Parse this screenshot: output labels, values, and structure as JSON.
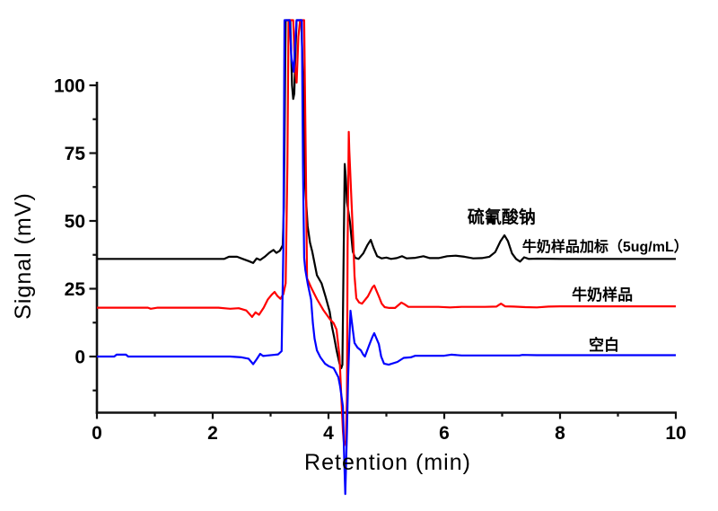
{
  "figure": {
    "kind": "HPLC chromatogram figure",
    "background": "#ffffff",
    "axis_color": "#111111"
  },
  "chart_data": {
    "type": "line",
    "title": "",
    "xlabel": "Retention (min)",
    "ylabel": "Signal (mV)",
    "xlim": [
      0,
      10
    ],
    "ylim": [
      -20,
      100
    ],
    "x_ticks_major": [
      0,
      2,
      4,
      6,
      8,
      10
    ],
    "x_ticks_minor": [
      1,
      3,
      5,
      7,
      9
    ],
    "y_ticks_major": [
      0,
      25,
      50,
      75,
      100
    ],
    "y_ticks_minor": [
      -12.5,
      12.5,
      37.5,
      62.5,
      87.5
    ],
    "grid": false,
    "legend_position": "inline-annotations",
    "clip_level_mV": 124,
    "series": [
      {
        "id": "spiked-milk-sample",
        "name": "牛奶样品加标（5ug/mL）",
        "color": "#000000",
        "baseline_mV": 36,
        "main_peak": {
          "t_min": 7.04,
          "mV": 44.7,
          "label": "硫氰酸钠"
        },
        "points": [
          [
            0,
            36
          ],
          [
            1,
            36
          ],
          [
            2,
            36
          ],
          [
            2.2,
            36
          ],
          [
            2.28,
            36.8
          ],
          [
            2.42,
            36.8
          ],
          [
            2.52,
            36
          ],
          [
            2.62,
            35.2
          ],
          [
            2.7,
            34.5
          ],
          [
            2.76,
            36.2
          ],
          [
            2.82,
            35.6
          ],
          [
            2.9,
            36.8
          ],
          [
            2.98,
            38.3
          ],
          [
            3.05,
            39.3
          ],
          [
            3.1,
            38.2
          ],
          [
            3.16,
            39
          ],
          [
            3.21,
            41
          ],
          [
            3.23,
            55
          ],
          [
            3.26,
            124
          ],
          [
            3.34,
            124
          ],
          [
            3.37,
            100
          ],
          [
            3.39,
            95
          ],
          [
            3.41,
            97
          ],
          [
            3.43,
            112
          ],
          [
            3.45,
            124
          ],
          [
            3.53,
            124
          ],
          [
            3.57,
            95
          ],
          [
            3.6,
            62
          ],
          [
            3.64,
            48
          ],
          [
            3.68,
            42
          ],
          [
            3.72,
            38.7
          ],
          [
            3.8,
            30
          ],
          [
            3.88,
            27
          ],
          [
            3.95,
            22
          ],
          [
            4.02,
            16.6
          ],
          [
            4.06,
            11
          ],
          [
            4.1,
            7
          ],
          [
            4.14,
            2.3
          ],
          [
            4.19,
            -2.6
          ],
          [
            4.22,
            -4.3
          ],
          [
            4.24,
            -3
          ],
          [
            4.26,
            35
          ],
          [
            4.28,
            71
          ],
          [
            4.3,
            66
          ],
          [
            4.32,
            57
          ],
          [
            4.37,
            49.7
          ],
          [
            4.42,
            38.7
          ],
          [
            4.46,
            36.4
          ],
          [
            4.52,
            36
          ],
          [
            4.6,
            38
          ],
          [
            4.67,
            41
          ],
          [
            4.73,
            43
          ],
          [
            4.78,
            40
          ],
          [
            4.84,
            37
          ],
          [
            4.92,
            36.2
          ],
          [
            5,
            36.5
          ],
          [
            5.08,
            36
          ],
          [
            5.18,
            36.3
          ],
          [
            5.27,
            37
          ],
          [
            5.35,
            36.2
          ],
          [
            5.5,
            36.4
          ],
          [
            5.64,
            37
          ],
          [
            5.75,
            36.3
          ],
          [
            5.9,
            36.3
          ],
          [
            6.05,
            37
          ],
          [
            6.2,
            37.2
          ],
          [
            6.35,
            36.8
          ],
          [
            6.5,
            36.2
          ],
          [
            6.65,
            36.3
          ],
          [
            6.78,
            36.8
          ],
          [
            6.88,
            38.5
          ],
          [
            6.97,
            42.5
          ],
          [
            7.04,
            44.7
          ],
          [
            7.1,
            42.5
          ],
          [
            7.17,
            38
          ],
          [
            7.24,
            36
          ],
          [
            7.31,
            35
          ],
          [
            7.38,
            36.6
          ],
          [
            7.46,
            36
          ],
          [
            7.6,
            36.1
          ],
          [
            8,
            36
          ],
          [
            8.5,
            36
          ],
          [
            9,
            36
          ],
          [
            9.5,
            36
          ],
          [
            10,
            36
          ]
        ]
      },
      {
        "id": "milk-sample",
        "name": "牛奶样品",
        "color": "#ff0000",
        "baseline_mV": 18,
        "points": [
          [
            0,
            18
          ],
          [
            0.88,
            18
          ],
          [
            0.93,
            17.6
          ],
          [
            1.05,
            18
          ],
          [
            1.5,
            18
          ],
          [
            2.1,
            18
          ],
          [
            2.3,
            17.6
          ],
          [
            2.45,
            17.8
          ],
          [
            2.58,
            17
          ],
          [
            2.68,
            14.6
          ],
          [
            2.74,
            16.3
          ],
          [
            2.8,
            15.4
          ],
          [
            2.88,
            18
          ],
          [
            2.95,
            21
          ],
          [
            3.02,
            22.8
          ],
          [
            3.07,
            23.8
          ],
          [
            3.12,
            22.3
          ],
          [
            3.17,
            21.3
          ],
          [
            3.22,
            23
          ],
          [
            3.26,
            27
          ],
          [
            3.29,
            70
          ],
          [
            3.31,
            124
          ],
          [
            3.39,
            124
          ],
          [
            3.42,
            107
          ],
          [
            3.45,
            101
          ],
          [
            3.48,
            118
          ],
          [
            3.51,
            124
          ],
          [
            3.58,
            124
          ],
          [
            3.61,
            70
          ],
          [
            3.63,
            28.8
          ],
          [
            3.7,
            25.5
          ],
          [
            3.8,
            21.2
          ],
          [
            3.91,
            17.2
          ],
          [
            4.02,
            13.9
          ],
          [
            4.09,
            12.3
          ],
          [
            4.14,
            9.9
          ],
          [
            4.19,
            0
          ],
          [
            4.22,
            -14.2
          ],
          [
            4.25,
            -27.5
          ],
          [
            4.27,
            -33
          ],
          [
            4.3,
            -31
          ],
          [
            4.32,
            -15
          ],
          [
            4.33,
            40
          ],
          [
            4.35,
            82.8
          ],
          [
            4.36,
            76
          ],
          [
            4.4,
            56
          ],
          [
            4.43,
            42
          ],
          [
            4.45,
            29.8
          ],
          [
            4.48,
            21.5
          ],
          [
            4.53,
            19.9
          ],
          [
            4.58,
            19.5
          ],
          [
            4.68,
            22.2
          ],
          [
            4.76,
            25.5
          ],
          [
            4.79,
            26.2
          ],
          [
            4.87,
            22.2
          ],
          [
            4.92,
            19.5
          ],
          [
            4.97,
            18.2
          ],
          [
            5.05,
            17.9
          ],
          [
            5.15,
            17.9
          ],
          [
            5.26,
            19.9
          ],
          [
            5.31,
            19.3
          ],
          [
            5.38,
            18.3
          ],
          [
            5.5,
            18.3
          ],
          [
            5.7,
            18.3
          ],
          [
            5.9,
            18.3
          ],
          [
            6.1,
            18.1
          ],
          [
            6.3,
            18.3
          ],
          [
            6.5,
            18.3
          ],
          [
            6.7,
            18.3
          ],
          [
            6.9,
            18.4
          ],
          [
            6.98,
            19.5
          ],
          [
            7.05,
            18.5
          ],
          [
            7.2,
            18.4
          ],
          [
            7.4,
            18.2
          ],
          [
            7.6,
            18.1
          ],
          [
            7.8,
            18.4
          ],
          [
            8,
            18.5
          ],
          [
            8.5,
            18.5
          ],
          [
            9,
            18.5
          ],
          [
            9.5,
            18.5
          ],
          [
            10,
            18.5
          ]
        ]
      },
      {
        "id": "blank",
        "name": "空白",
        "color": "#0000ff",
        "baseline_mV": 0,
        "points": [
          [
            0,
            0
          ],
          [
            0.3,
            0
          ],
          [
            0.34,
            0.7
          ],
          [
            0.5,
            0.7
          ],
          [
            0.54,
            0
          ],
          [
            1,
            0
          ],
          [
            1.5,
            0
          ],
          [
            2,
            0
          ],
          [
            2.3,
            0
          ],
          [
            2.5,
            -0.3
          ],
          [
            2.62,
            -0.8
          ],
          [
            2.7,
            -2.8
          ],
          [
            2.76,
            -1
          ],
          [
            2.82,
            1
          ],
          [
            2.87,
            0.2
          ],
          [
            2.95,
            0.4
          ],
          [
            3.05,
            0.6
          ],
          [
            3.13,
            0.8
          ],
          [
            3.19,
            2
          ],
          [
            3.22,
            40
          ],
          [
            3.24,
            124
          ],
          [
            3.33,
            124
          ],
          [
            3.36,
            110
          ],
          [
            3.4,
            105
          ],
          [
            3.43,
            118
          ],
          [
            3.45,
            124
          ],
          [
            3.54,
            124
          ],
          [
            3.56,
            70
          ],
          [
            3.58,
            36.4
          ],
          [
            3.6,
            32
          ],
          [
            3.64,
            27
          ],
          [
            3.7,
            21
          ],
          [
            3.73,
            12.3
          ],
          [
            3.76,
            6.6
          ],
          [
            3.8,
            2.3
          ],
          [
            3.86,
            -0.3
          ],
          [
            3.94,
            -2.6
          ],
          [
            4.01,
            -3.6
          ],
          [
            4.09,
            -4.3
          ],
          [
            4.17,
            -7.6
          ],
          [
            4.2,
            -10.9
          ],
          [
            4.25,
            -18.5
          ],
          [
            4.27,
            -36.4
          ],
          [
            4.29,
            -50.7
          ],
          [
            4.32,
            -27.5
          ],
          [
            4.34,
            -7.6
          ],
          [
            4.36,
            5.6
          ],
          [
            4.38,
            16.9
          ],
          [
            4.42,
            9.9
          ],
          [
            4.45,
            5
          ],
          [
            4.5,
            3.3
          ],
          [
            4.56,
            2.3
          ],
          [
            4.6,
            0.7
          ],
          [
            4.63,
            0
          ],
          [
            4.71,
            4.6
          ],
          [
            4.76,
            7.3
          ],
          [
            4.79,
            8.6
          ],
          [
            4.87,
            4.6
          ],
          [
            4.91,
            0
          ],
          [
            4.96,
            -2.6
          ],
          [
            5.04,
            -3
          ],
          [
            5.19,
            -2
          ],
          [
            5.3,
            -0.5
          ],
          [
            5.42,
            -0.3
          ],
          [
            5.5,
            0.3
          ],
          [
            5.75,
            0.3
          ],
          [
            6,
            0.3
          ],
          [
            6.12,
            0.7
          ],
          [
            6.3,
            0.4
          ],
          [
            6.6,
            0.4
          ],
          [
            7,
            0.4
          ],
          [
            7.3,
            0.4
          ],
          [
            7.35,
            0.6
          ],
          [
            7.6,
            0.5
          ],
          [
            8,
            0.5
          ],
          [
            8.5,
            0.5
          ],
          [
            9,
            0.5
          ],
          [
            9.5,
            0.5
          ],
          [
            10,
            0.5
          ]
        ]
      }
    ],
    "annotations": [
      {
        "text": "硫氰酸钠",
        "t": 6.99,
        "mV": 49.3,
        "font_size": 19
      },
      {
        "text": "牛奶样品加标（5ug/mL）",
        "t": 8.78,
        "mV": 38.7,
        "font_size": 16
      },
      {
        "text": "牛奶样品",
        "t": 8.73,
        "mV": 20.8,
        "font_size": 17
      },
      {
        "text": "空白",
        "t": 8.76,
        "mV": 2.3,
        "font_size": 17
      }
    ]
  }
}
